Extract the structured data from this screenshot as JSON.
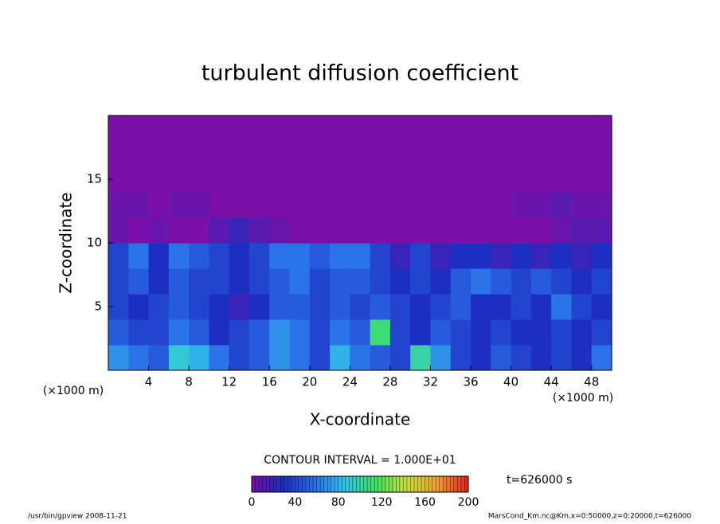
{
  "chart_data": {
    "type": "heatmap",
    "title": "turbulent diffusion coefficient",
    "xlabel": "X-coordinate",
    "ylabel": "Z-coordinate",
    "x_unit_left": "(×1000 m)",
    "x_unit_right": "(×1000 m)",
    "contour_interval": "CONTOUR INTERVAL = 1.000E+01",
    "time_label": "t=626000 s",
    "footer_left": "/usr/bin/gpview   2008-11-21",
    "footer_right": "MarsCond_Km.nc@Km,x=0:50000,z=0:20000,t=626000",
    "xlim": [
      0,
      50
    ],
    "ylim": [
      0,
      20
    ],
    "xticks": [
      4,
      8,
      12,
      16,
      20,
      24,
      28,
      32,
      36,
      40,
      44,
      48
    ],
    "yticks": [
      5,
      10,
      15
    ],
    "x": [
      1,
      3,
      5,
      7,
      9,
      11,
      13,
      15,
      17,
      19,
      21,
      23,
      25,
      27,
      29,
      31,
      33,
      35,
      37,
      39,
      41,
      43,
      45,
      47,
      49
    ],
    "y": [
      1,
      3,
      5,
      7,
      9,
      11,
      13,
      15,
      17,
      19
    ],
    "z": [
      [
        70,
        60,
        50,
        90,
        80,
        60,
        40,
        50,
        70,
        60,
        40,
        80,
        60,
        50,
        40,
        100,
        70,
        40,
        30,
        50,
        40,
        30,
        40,
        30,
        60
      ],
      [
        50,
        40,
        40,
        60,
        50,
        30,
        40,
        50,
        70,
        60,
        40,
        60,
        50,
        110,
        40,
        30,
        50,
        40,
        30,
        40,
        30,
        30,
        40,
        30,
        40
      ],
      [
        40,
        30,
        40,
        50,
        40,
        30,
        20,
        30,
        50,
        50,
        40,
        50,
        40,
        50,
        40,
        30,
        40,
        50,
        30,
        30,
        40,
        30,
        60,
        40,
        30
      ],
      [
        40,
        50,
        30,
        50,
        40,
        40,
        30,
        40,
        50,
        60,
        40,
        50,
        50,
        40,
        30,
        40,
        30,
        50,
        60,
        50,
        40,
        50,
        40,
        30,
        40
      ],
      [
        40,
        60,
        30,
        60,
        50,
        40,
        30,
        40,
        60,
        60,
        50,
        60,
        60,
        40,
        20,
        40,
        20,
        30,
        30,
        20,
        30,
        20,
        30,
        20,
        30
      ],
      [
        5,
        0,
        5,
        0,
        0,
        10,
        20,
        10,
        5,
        0,
        0,
        0,
        0,
        0,
        0,
        0,
        0,
        0,
        0,
        0,
        0,
        0,
        5,
        10,
        10
      ],
      [
        5,
        5,
        0,
        5,
        5,
        0,
        0,
        0,
        0,
        0,
        0,
        0,
        0,
        0,
        0,
        0,
        0,
        0,
        0,
        0,
        5,
        5,
        10,
        5,
        5
      ],
      [
        0,
        0,
        0,
        0,
        0,
        0,
        0,
        0,
        0,
        0,
        0,
        0,
        0,
        0,
        0,
        0,
        0,
        0,
        0,
        0,
        0,
        0,
        0,
        0,
        0
      ],
      [
        0,
        0,
        0,
        0,
        0,
        0,
        0,
        0,
        0,
        0,
        0,
        0,
        0,
        0,
        0,
        0,
        0,
        0,
        0,
        0,
        0,
        0,
        0,
        0,
        0
      ],
      [
        0,
        0,
        0,
        0,
        0,
        0,
        0,
        0,
        0,
        0,
        0,
        0,
        0,
        0,
        0,
        0,
        0,
        0,
        0,
        0,
        0,
        0,
        0,
        0,
        0
      ]
    ],
    "clim": [
      0,
      200
    ],
    "cticks": [
      0,
      40,
      80,
      120,
      160,
      200
    ],
    "colors": [
      "#7a10a8",
      "#1c2cc0",
      "#2a6ae8",
      "#30c4e8",
      "#40e060",
      "#c8e040",
      "#f0a030",
      "#e02020"
    ]
  }
}
